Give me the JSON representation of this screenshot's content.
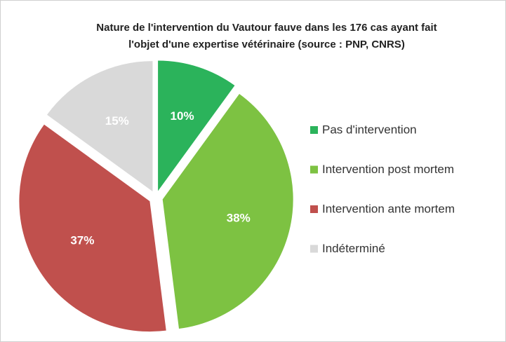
{
  "chart_data": {
    "type": "pie",
    "title": [
      "Nature de l'intervention du Vautour fauve dans les 176 cas ayant fait",
      "l'objet d'une expertise vétérinaire (source : PNP, CNRS)"
    ],
    "categories": [
      "Pas d'intervention",
      "Intervention post mortem",
      "Intervention ante mortem",
      "Indéterminé"
    ],
    "values": [
      10,
      38,
      37,
      15
    ],
    "value_labels": [
      "10%",
      "38%",
      "37%",
      "15%"
    ],
    "colors": [
      "#2bb35b",
      "#7dc242",
      "#c0504d",
      "#d9d9d9"
    ],
    "legend": "right"
  }
}
